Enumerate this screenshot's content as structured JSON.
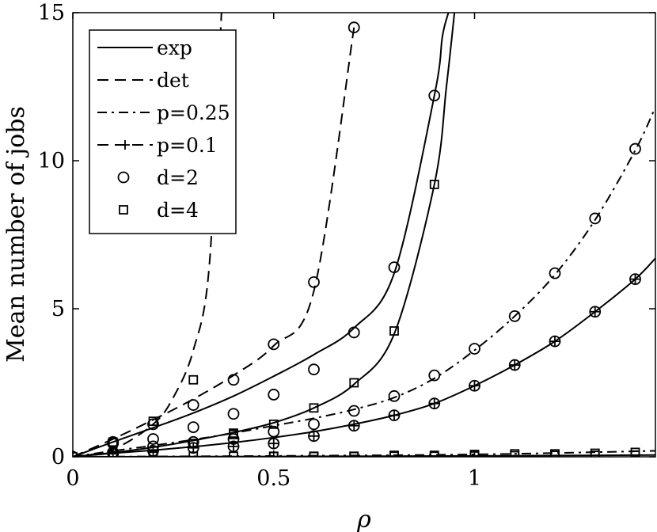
{
  "chart_data": {
    "type": "line",
    "xlabel": "ρ",
    "ylabel": "Mean number of jobs",
    "xlim": [
      0,
      1.45
    ],
    "ylim": [
      0,
      15
    ],
    "x_ticks": [
      0,
      0.5,
      1
    ],
    "x_tick_labels": [
      "0",
      "0.5",
      "1"
    ],
    "y_ticks": [
      0,
      5,
      10,
      15
    ],
    "y_tick_labels": [
      "0",
      "5",
      "10",
      "15"
    ],
    "grid": false,
    "legend_position": "top-left",
    "legend": [
      {
        "label": "exp",
        "style": "solid"
      },
      {
        "label": "det",
        "style": "dashed"
      },
      {
        "label": "p=0.25",
        "style": "dashdot"
      },
      {
        "label": "p=0.1",
        "style": "dashed-plus"
      },
      {
        "label": "d=2",
        "style": "circle"
      },
      {
        "label": "d=4",
        "style": "square"
      }
    ],
    "series": [
      {
        "curve": "solid",
        "x": [
          0,
          0.1,
          0.2,
          0.3,
          0.4,
          0.5,
          0.6,
          0.7,
          0.8,
          0.9,
          0.92,
          0.935
        ],
        "values": [
          0,
          0.5,
          0.98,
          1.48,
          2.05,
          2.72,
          3.45,
          4.35,
          6.2,
          12.2,
          14.2,
          15
        ]
      },
      {
        "curve": "solid",
        "x": [
          0,
          0.1,
          0.2,
          0.3,
          0.4,
          0.5,
          0.6,
          0.7,
          0.8,
          0.9,
          0.93,
          0.95
        ],
        "values": [
          0,
          0.14,
          0.32,
          0.55,
          0.82,
          1.15,
          1.65,
          2.45,
          4.15,
          9.2,
          12.5,
          15
        ]
      },
      {
        "curve": "dashed",
        "x": [
          0,
          0.1,
          0.2,
          0.3,
          0.4,
          0.5,
          0.6,
          0.7
        ],
        "values": [
          0,
          0.6,
          1.25,
          1.95,
          2.75,
          3.75,
          5.6,
          14.5
        ]
      },
      {
        "curve": "dashed",
        "x": [
          0,
          0.1,
          0.2,
          0.25,
          0.3,
          0.34,
          0.37
        ],
        "values": [
          0,
          0.25,
          1.1,
          2.0,
          3.6,
          6.5,
          15
        ]
      },
      {
        "curve": "dashdot",
        "x": [
          0,
          0.1,
          0.2,
          0.3,
          0.4,
          0.5,
          0.6,
          0.7,
          0.8,
          0.9,
          1.0,
          1.1,
          1.2,
          1.3,
          1.4,
          1.45
        ],
        "values": [
          0,
          0.2,
          0.38,
          0.58,
          0.8,
          1.05,
          1.3,
          1.6,
          2.0,
          2.65,
          3.6,
          4.75,
          6.15,
          8.0,
          10.35,
          11.8
        ]
      },
      {
        "curve": "solid",
        "x": [
          0,
          0.1,
          0.2,
          0.3,
          0.4,
          0.5,
          0.6,
          0.7,
          0.8,
          0.9,
          1.0,
          1.1,
          1.2,
          1.3,
          1.4,
          1.45
        ],
        "values": [
          0,
          0.12,
          0.22,
          0.34,
          0.48,
          0.65,
          0.85,
          1.1,
          1.4,
          1.8,
          2.4,
          3.1,
          3.9,
          4.9,
          6.0,
          6.7
        ]
      },
      {
        "curve": "dashdot",
        "x": [
          0,
          0.5,
          1.0,
          1.45
        ],
        "values": [
          0,
          0.03,
          0.08,
          0.2
        ]
      },
      {
        "curve": "solid",
        "x": [
          0,
          0.5,
          1.0,
          1.45
        ],
        "values": [
          0,
          0.01,
          0.03,
          0.06
        ]
      }
    ],
    "markers": [
      {
        "symbol": "circle",
        "x": [
          0.1,
          0.2,
          0.3,
          0.4,
          0.5,
          0.6,
          0.7,
          0.8,
          0.9
        ],
        "values": [
          0.5,
          1.1,
          1.75,
          2.6,
          3.8,
          5.9,
          14.5,
          6.4,
          12.2
        ]
      },
      {
        "symbol": "circle",
        "x": [
          0.1,
          0.2,
          0.3,
          0.4,
          0.5,
          0.6,
          0.7
        ],
        "values": [
          0.45,
          0.6,
          1.0,
          1.45,
          2.1,
          2.95,
          4.2
        ]
      },
      {
        "symbol": "circle",
        "x": [
          0.1,
          0.2,
          0.3,
          0.4,
          0.5,
          0.6,
          0.7,
          0.8,
          0.9,
          1.0,
          1.1,
          1.2,
          1.3,
          1.4
        ],
        "values": [
          0.15,
          0.35,
          0.5,
          0.6,
          0.85,
          1.1,
          1.55,
          2.05,
          2.75,
          3.65,
          4.75,
          6.2,
          8.05,
          10.4
        ]
      },
      {
        "symbol": "circle",
        "x": [
          0.1,
          0.2,
          0.3,
          0.4,
          0.5,
          0.6,
          0.7,
          0.8,
          0.9,
          1.0,
          1.1,
          1.2,
          1.3,
          1.4
        ],
        "values": [
          0.1,
          0.2,
          0.3,
          0.35,
          0.45,
          0.7,
          1.05,
          1.4,
          1.8,
          2.4,
          3.1,
          3.9,
          4.9,
          6.0
        ]
      },
      {
        "symbol": "square",
        "x": [
          0.1,
          0.2,
          0.3,
          0.4,
          0.5,
          0.6,
          0.7,
          0.8,
          0.9
        ],
        "values": [
          0.5,
          1.2,
          2.6,
          0.75,
          1.1,
          1.65,
          2.5,
          4.25,
          9.2
        ]
      },
      {
        "symbol": "square",
        "x": [
          0.1,
          0.2,
          0.3,
          0.4,
          0.5,
          0.6,
          0.7,
          0.8,
          0.9,
          1.0,
          1.1,
          1.2,
          1.3,
          1.4
        ],
        "values": [
          0.05,
          0.1,
          0.45,
          0.8,
          0.02,
          0.02,
          0.02,
          0.05,
          0.05,
          0.08,
          0.1,
          0.1,
          0.12,
          0.15
        ]
      },
      {
        "symbol": "square",
        "x": [
          0.1,
          0.2,
          0.3,
          0.4,
          0.5,
          0.6,
          0.7,
          0.8,
          0.9,
          1.0,
          1.1,
          1.2,
          1.3,
          1.4
        ],
        "values": [
          0.02,
          0.02,
          0.02,
          0.02,
          0.01,
          0.01,
          0.01,
          0.02,
          0.02,
          0.03,
          0.04,
          0.05,
          0.05,
          0.06
        ]
      },
      {
        "symbol": "plus",
        "x": [
          0.1,
          0.2,
          0.3,
          0.4,
          0.5,
          0.6,
          0.7,
          0.8,
          0.9,
          1.0,
          1.1,
          1.2,
          1.3,
          1.4
        ],
        "values": [
          0.1,
          0.2,
          0.3,
          0.35,
          0.45,
          0.7,
          1.05,
          1.4,
          1.8,
          2.4,
          3.1,
          3.9,
          4.9,
          6.0
        ]
      }
    ]
  }
}
